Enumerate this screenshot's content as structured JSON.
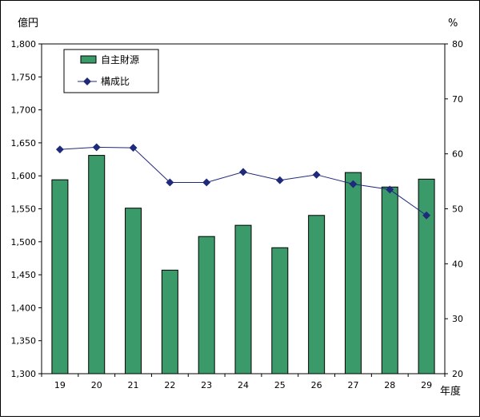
{
  "chart_data": {
    "type": "bar",
    "categories": [
      "19",
      "20",
      "21",
      "22",
      "23",
      "24",
      "25",
      "26",
      "27",
      "28",
      "29"
    ],
    "series": [
      {
        "name": "自主財源",
        "type": "bar",
        "axis": "left",
        "color": "#3a9a6a",
        "values": [
          1594,
          1631,
          1551,
          1457,
          1508,
          1525,
          1491,
          1540,
          1605,
          1583,
          1595
        ]
      },
      {
        "name": "構成比",
        "type": "line",
        "axis": "right",
        "color": "#1f2a7a",
        "values": [
          60.8,
          61.2,
          61.1,
          54.8,
          54.8,
          56.7,
          55.2,
          56.2,
          54.5,
          53.5,
          48.8
        ]
      }
    ],
    "ylabel": "億円",
    "y2label": "%",
    "xlabel": "年度",
    "ylim": [
      1300,
      1800
    ],
    "y2lim": [
      20,
      80
    ],
    "yticks": [
      "1,300",
      "1,350",
      "1,400",
      "1,450",
      "1,500",
      "1,550",
      "1,600",
      "1,650",
      "1,700",
      "1,750",
      "1,800"
    ],
    "y2ticks": [
      "20",
      "30",
      "40",
      "50",
      "60",
      "70",
      "80"
    ],
    "legend_position": "top-left",
    "grid": false
  }
}
